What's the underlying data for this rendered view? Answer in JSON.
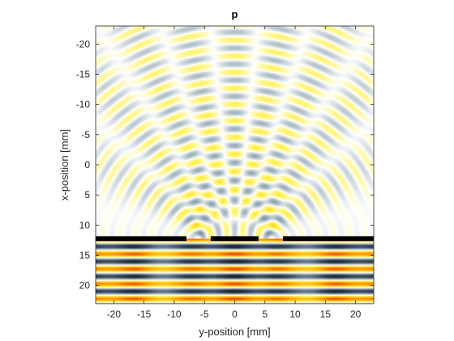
{
  "chart_data": {
    "type": "heatmap",
    "title": "p",
    "xlabel": "y-position [mm]",
    "ylabel": "x-position [mm]",
    "xlim": [
      -23,
      23
    ],
    "ylim": [
      -23,
      23
    ],
    "y_axis_reversed": true,
    "xticks": [
      -20,
      -15,
      -10,
      -5,
      0,
      5,
      10,
      15,
      20
    ],
    "yticks": [
      -20,
      -15,
      -10,
      -5,
      0,
      5,
      10,
      15,
      20
    ],
    "xtick_labels": [
      "-20",
      "-15",
      "-10",
      "-5",
      "0",
      "5",
      "10",
      "15",
      "20"
    ],
    "ytick_labels": [
      "-20",
      "-15",
      "-10",
      "-5",
      "0",
      "5",
      "10",
      "15",
      "20"
    ],
    "grid": false,
    "colorbar": false,
    "colormap": "diverging (black-blue-gray / white / yellow-orange-red)",
    "colormap_stops": [
      "#000000",
      "#39485c",
      "#9fb2bd",
      "#ffffff",
      "#fff14a",
      "#ff9c00",
      "#d90000"
    ],
    "field": {
      "description": "acoustic pressure field from two apertures in a barrier",
      "barrier_x_mm": 12.3,
      "barrier_gaps_y_mm": [
        [
          -8,
          -4
        ],
        [
          4,
          8
        ]
      ],
      "wavelength_mm": 2.6,
      "source_region": "x > 12.3 mm (below barrier)"
    }
  }
}
